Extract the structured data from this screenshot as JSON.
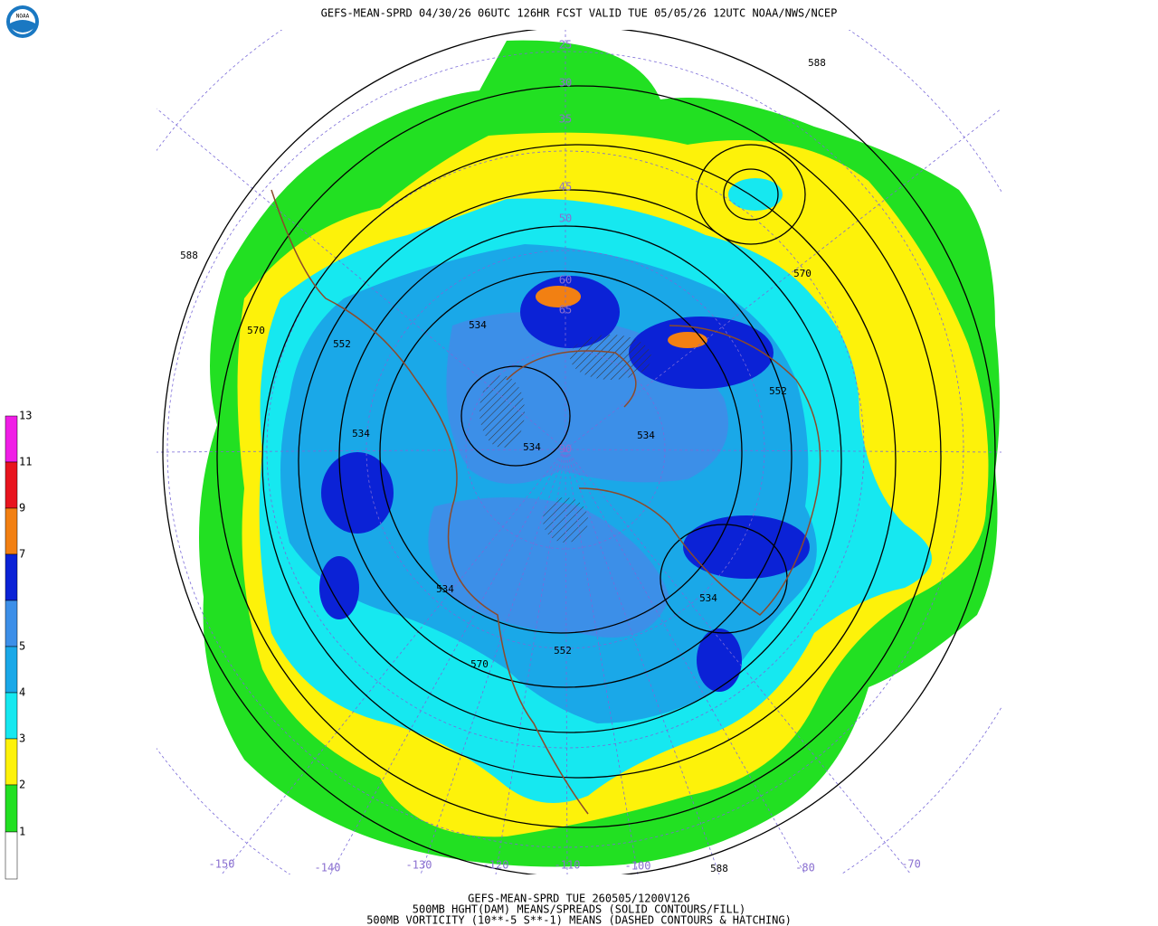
{
  "header": {
    "title": "GEFS-MEAN-SPRD 04/30/26 06UTC 126HR FCST VALID TUE 05/05/26 12UTC NOAA/NWS/NCEP",
    "logo": "NOAA"
  },
  "legend": {
    "labels": [
      "1",
      "2",
      "3",
      "4",
      "5",
      "7",
      "9",
      "11",
      "13"
    ]
  },
  "contour_labels": [
    "588",
    "588",
    "570",
    "552",
    "534",
    "534",
    "534",
    "534",
    "552",
    "570",
    "534",
    "552",
    "570",
    "534",
    "588"
  ],
  "latitude_labels": [
    "25",
    "30",
    "35",
    "45",
    "50",
    "60",
    "65",
    "90"
  ],
  "longitude_labels": [
    "-150",
    "-140",
    "-130",
    "-120",
    "-110",
    "-100",
    "-80",
    "-70"
  ],
  "footer": {
    "lines": [
      "GEFS-MEAN-SPRD TUE 260505/1200V126",
      "500MB HGHT(DAM) MEANS/SPREADS (SOLID CONTOURS/FILL)",
      "500MB VORTICITY (10**-5 S**-1) MEANS (DASHED CONTOURS & HATCHING)"
    ]
  }
}
